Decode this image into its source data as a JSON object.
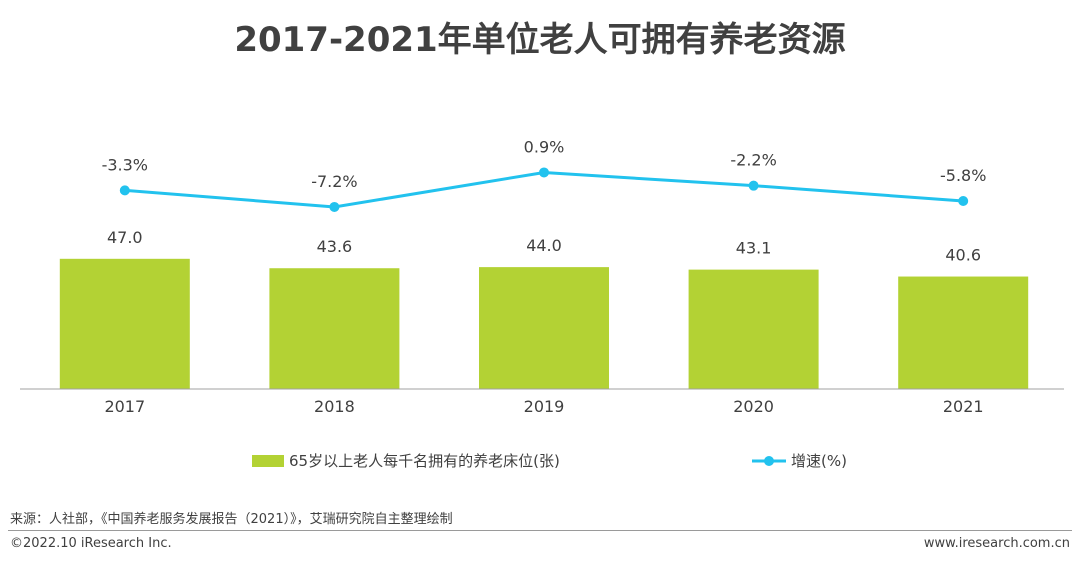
{
  "chart_data": {
    "type": "bar",
    "title": "2017-2021年单位老人可拥有养老资源",
    "categories": [
      "2017",
      "2018",
      "2019",
      "2020",
      "2021"
    ],
    "series": [
      {
        "name": "65岁以上老人每千名拥有的养老床位(张)",
        "type": "bar",
        "values": [
          47.0,
          43.6,
          44.0,
          43.1,
          40.6
        ],
        "labels": [
          "47.0",
          "43.6",
          "44.0",
          "43.1",
          "40.6"
        ],
        "color": "#b3d234"
      },
      {
        "name": "增速(%)",
        "type": "line",
        "values": [
          -3.3,
          -7.2,
          0.9,
          -2.2,
          -5.8
        ],
        "labels": [
          "-3.3%",
          "-7.2%",
          "0.9%",
          "-2.2%",
          "-5.8%"
        ],
        "color": "#22c2ee"
      }
    ],
    "legend_position": "bottom",
    "grid": false
  },
  "footer": {
    "source": "来源：人社部，《中国养老服务发展报告（2021）》，艾瑞研究院自主整理绘制",
    "copyright": "©2022.10 iResearch Inc.",
    "website": "www.iresearch.com.cn"
  }
}
